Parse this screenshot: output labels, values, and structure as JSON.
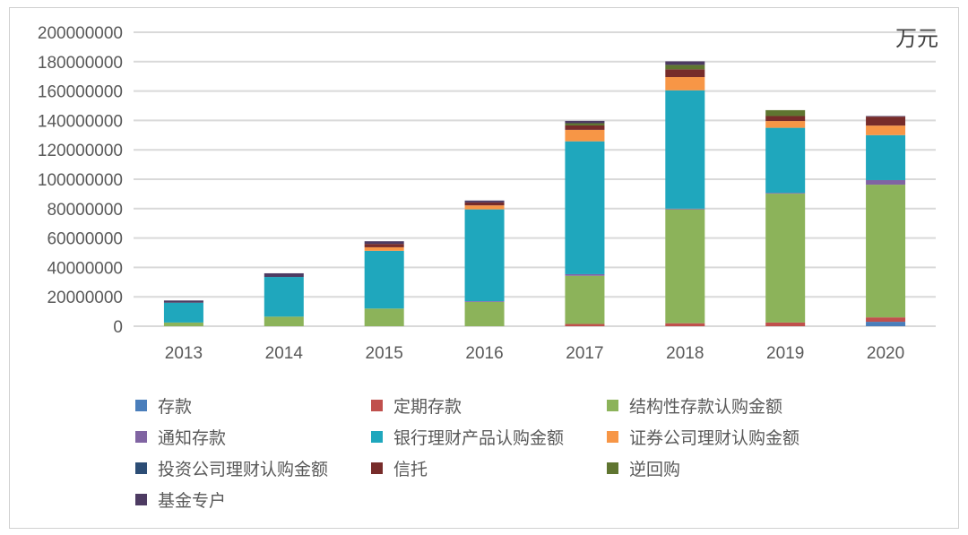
{
  "chart_data": {
    "type": "bar",
    "stacked": true,
    "unit_label": "万元",
    "categories": [
      "2013",
      "2014",
      "2015",
      "2016",
      "2017",
      "2018",
      "2019",
      "2020"
    ],
    "ylim": [
      0,
      200000000
    ],
    "yticks": [
      0,
      20000000,
      40000000,
      60000000,
      80000000,
      100000000,
      120000000,
      140000000,
      160000000,
      180000000,
      200000000
    ],
    "grid": true,
    "legend_position": "bottom",
    "series": [
      {
        "name": "存款",
        "color": "#4a7ebb",
        "values": [
          0,
          0,
          0,
          0,
          0,
          0,
          0,
          3000000
        ]
      },
      {
        "name": "定期存款",
        "color": "#c0504d",
        "values": [
          0,
          0,
          0,
          0,
          1500000,
          2000000,
          2500000,
          3000000
        ]
      },
      {
        "name": "结构性存款认购金额",
        "color": "#8cb35a",
        "values": [
          2500000,
          6500000,
          12000000,
          16500000,
          32800000,
          77500000,
          87700000,
          90300000
        ]
      },
      {
        "name": "通知存款",
        "color": "#8064a2",
        "values": [
          0,
          0,
          0,
          500000,
          1100000,
          500000,
          500000,
          3100000
        ]
      },
      {
        "name": "银行理财产品认购金额",
        "color": "#1fa7bd",
        "values": [
          13500000,
          27000000,
          39300000,
          62500000,
          90400000,
          80500000,
          44300000,
          30600000
        ]
      },
      {
        "name": "证券公司理财认购金额",
        "color": "#f79646",
        "values": [
          0,
          0,
          2400000,
          2700000,
          7800000,
          9000000,
          4600000,
          6500000
        ]
      },
      {
        "name": "投资公司理财认购金额",
        "color": "#2c4d75",
        "values": [
          0,
          0,
          0,
          0,
          0,
          0,
          0,
          0
        ]
      },
      {
        "name": "信托",
        "color": "#772c2a",
        "values": [
          0,
          0,
          2300000,
          2000000,
          3000000,
          5300000,
          3400000,
          6100000
        ]
      },
      {
        "name": "逆回购",
        "color": "#5f7530",
        "values": [
          0,
          0,
          0,
          0,
          1500000,
          3000000,
          4000000,
          0
        ]
      },
      {
        "name": "基金专户",
        "color": "#4d3b62",
        "values": [
          1500000,
          2500000,
          1800000,
          1300000,
          1600000,
          2400000,
          0,
          400000
        ]
      }
    ]
  }
}
